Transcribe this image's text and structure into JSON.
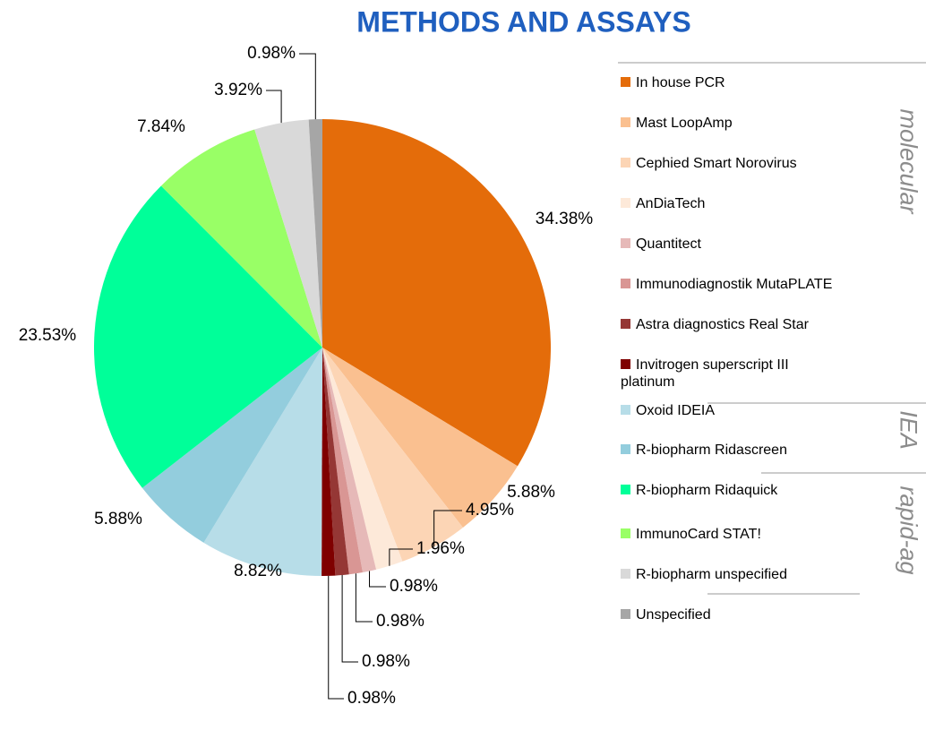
{
  "chart_data": {
    "type": "pie",
    "title": "METHODS AND ASSAYS",
    "categories": [
      "In house PCR",
      "Mast LoopAmp",
      "Cephied Smart Norovirus",
      "AnDiaTech",
      "Quantitect",
      "Immunodiagnostik MutaPLATE",
      "Astra diagnostics Real Star",
      "Invitrogen superscript III platinum",
      "Oxoid IDEIA",
      "R-biopharm Ridascreen",
      "R-biopharm Ridaquick",
      "ImmunoCard STAT!",
      "R-biopharm unspecified",
      "Unspecified"
    ],
    "values": [
      34.38,
      5.88,
      4.95,
      1.96,
      0.98,
      0.98,
      0.98,
      0.98,
      8.82,
      5.88,
      23.53,
      7.84,
      3.92,
      0.98
    ],
    "value_labels": [
      "34.38%",
      "5.88%",
      "4.95%",
      "1.96%",
      "0.98%",
      "0.98%",
      "0.98%",
      "0.98%",
      "8.82%",
      "5.88%",
      "23.53%",
      "7.84%",
      "3.92%",
      "0.98%"
    ],
    "colors": [
      "#e46c0a",
      "#fac090",
      "#fcd5b5",
      "#fde9d9",
      "#e6b9b8",
      "#d99694",
      "#953735",
      "#7f0000",
      "#b7dde8",
      "#93cddd",
      "#00ff99",
      "#99ff66",
      "#d9d9d9",
      "#a6a6a6"
    ],
    "legend_groups": [
      "molecular",
      "IEA",
      "rapid-ag"
    ]
  }
}
